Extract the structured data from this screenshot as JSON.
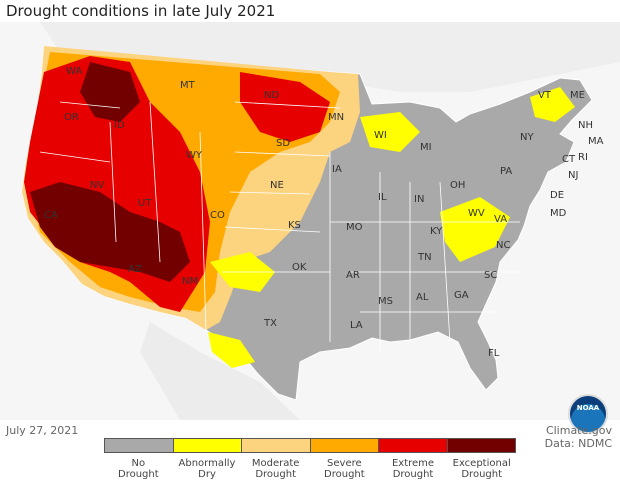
{
  "title": "Drought conditions in late July 2021",
  "date": "July 27, 2021",
  "credit": {
    "line1": "Climate.gov",
    "line2": "Data: NDMC"
  },
  "logo": {
    "text": "NOAA",
    "icon": "noaa-logo"
  },
  "legend": [
    {
      "line1": "No",
      "line2": "Drought",
      "color": "#a9a9a9"
    },
    {
      "line1": "Abnormally",
      "line2": "Dry",
      "color": "#ffff00"
    },
    {
      "line1": "Moderate",
      "line2": "Drought",
      "color": "#fcd37f"
    },
    {
      "line1": "Severe",
      "line2": "Drought",
      "color": "#ffaa00"
    },
    {
      "line1": "Extreme",
      "line2": "Drought",
      "color": "#e60000"
    },
    {
      "line1": "Exceptional",
      "line2": "Drought",
      "color": "#730000"
    }
  ],
  "states": {
    "WA": "WA",
    "OR": "OR",
    "ID": "ID",
    "MT": "MT",
    "ND": "ND",
    "MN": "MN",
    "WI": "WI",
    "MI": "MI",
    "NV": "NV",
    "CA": "CA",
    "UT": "UT",
    "WY": "WY",
    "SD": "SD",
    "NE": "NE",
    "IA": "IA",
    "IL": "IL",
    "IN": "IN",
    "OH": "OH",
    "PA": "PA",
    "NY": "NY",
    "VT": "VT",
    "ME": "ME",
    "NH": "NH",
    "MA": "MA",
    "CT": "CT",
    "RI": "RI",
    "NJ": "NJ",
    "DE": "DE",
    "MD": "MD",
    "CO": "CO",
    "KS": "KS",
    "MO": "MO",
    "KY": "KY",
    "WV": "WV",
    "VA": "VA",
    "AZ": "AZ",
    "NM": "NM",
    "OK": "OK",
    "AR": "AR",
    "TN": "TN",
    "NC": "NC",
    "SC": "SC",
    "TX": "TX",
    "LA": "LA",
    "MS": "MS",
    "AL": "AL",
    "GA": "GA",
    "FL": "FL"
  }
}
